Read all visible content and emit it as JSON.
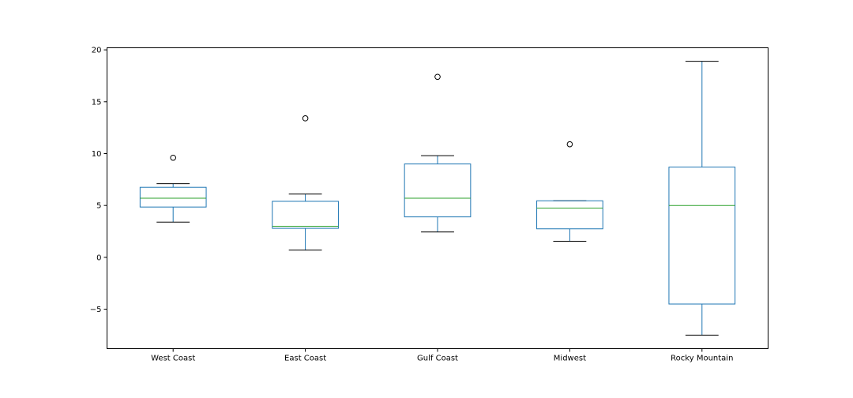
{
  "chart_data": {
    "type": "box",
    "title": "",
    "xlabel": "",
    "ylabel": "",
    "categories": [
      "West Coast",
      "East Coast",
      "Gulf Coast",
      "Midwest",
      "Rocky Mountain"
    ],
    "boxes": [
      {
        "whisker_low": 3.4,
        "q1": 4.85,
        "median": 5.7,
        "q3": 6.75,
        "whisker_high": 7.1,
        "outliers": [
          9.6
        ]
      },
      {
        "whisker_low": 0.7,
        "q1": 2.8,
        "median": 3.0,
        "q3": 5.4,
        "whisker_high": 6.1,
        "outliers": [
          13.4
        ]
      },
      {
        "whisker_low": 2.45,
        "q1": 3.9,
        "median": 5.7,
        "q3": 9.0,
        "whisker_high": 9.8,
        "outliers": [
          17.4
        ]
      },
      {
        "whisker_low": 1.55,
        "q1": 2.75,
        "median": 4.75,
        "q3": 5.45,
        "whisker_high": 5.45,
        "outliers": [
          10.9
        ]
      },
      {
        "whisker_low": -7.5,
        "q1": -4.5,
        "median": 5.0,
        "q3": 8.7,
        "whisker_high": 18.9,
        "outliers": []
      }
    ],
    "ylim": [
      -8.8,
      20.2
    ],
    "yticks": [
      -5,
      0,
      5,
      10,
      15,
      20
    ],
    "ytick_labels": [
      "−5",
      "0",
      "5",
      "10",
      "15",
      "20"
    ],
    "grid": false,
    "colors": {
      "box": "#1f77b4",
      "median": "#2ca02c",
      "whisker_cap": "#000000",
      "outlier": "#000000"
    }
  }
}
